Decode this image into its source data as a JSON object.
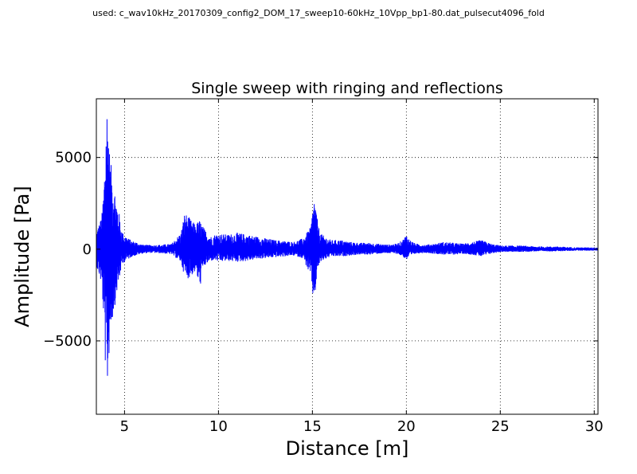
{
  "suptitle": "used: c_wav10kHz_20170309_config2_DOM_17_sweep10-60kHz_10Vpp_bp1-80.dat_pulsecut4096_fold",
  "chart_data": {
    "type": "line",
    "title": "Single sweep with ringing and reflections",
    "xlabel": "Distance [m]",
    "ylabel": "Amplitude [Pa]",
    "xlim": [
      3.5,
      30.2
    ],
    "ylim": [
      -9000,
      8200
    ],
    "grid": true,
    "color": "#0000ff",
    "xticks": [
      5,
      10,
      15,
      20,
      25,
      30
    ],
    "xtick_labels": [
      "5",
      "10",
      "15",
      "20",
      "25",
      "30"
    ],
    "yticks": [
      -5000,
      0,
      5000
    ],
    "ytick_labels": [
      "−5000",
      "0",
      "5000"
    ],
    "series": [
      {
        "x": [
          3.5,
          3.6,
          3.7,
          3.8,
          3.9,
          4.0,
          4.05,
          4.1,
          4.15,
          4.2,
          4.25,
          4.3,
          4.4,
          4.5,
          4.6,
          4.7,
          4.8,
          4.9,
          5.0,
          5.2,
          5.4,
          5.6,
          5.8,
          6.0,
          6.5,
          7.0,
          7.5,
          8.0,
          8.2,
          8.4,
          8.6,
          8.8,
          9.0,
          9.2,
          9.4,
          9.6,
          9.8,
          10.0,
          10.5,
          11.0,
          11.5,
          12.0,
          12.5,
          13.0,
          13.5,
          14.0,
          14.5,
          14.9,
          15.0,
          15.1,
          15.2,
          15.3,
          15.5,
          15.8,
          16.0,
          16.5,
          17.0,
          17.5,
          18.0,
          18.5,
          19.0,
          19.5,
          19.8,
          20.0,
          20.2,
          20.5,
          21.0,
          21.5,
          22.0,
          22.5,
          23.0,
          23.5,
          24.0,
          24.5,
          25.0,
          26.0,
          27.0,
          28.0,
          29.0,
          30.0,
          30.2
        ],
        "upper": [
          900,
          1300,
          1500,
          2000,
          3500,
          6500,
          8200,
          7800,
          7000,
          5500,
          4800,
          4500,
          3800,
          3200,
          2500,
          2100,
          1300,
          900,
          800,
          600,
          450,
          400,
          300,
          250,
          220,
          250,
          300,
          900,
          2000,
          1800,
          1500,
          1400,
          1600,
          1200,
          900,
          700,
          800,
          850,
          800,
          900,
          800,
          700,
          600,
          500,
          450,
          400,
          600,
          1200,
          2000,
          2900,
          2200,
          1300,
          800,
          600,
          500,
          500,
          400,
          350,
          350,
          300,
          250,
          300,
          500,
          800,
          500,
          300,
          250,
          300,
          400,
          350,
          300,
          400,
          500,
          300,
          200,
          200,
          150,
          150,
          100,
          100,
          100
        ],
        "lower": [
          -900,
          -1300,
          -1600,
          -2200,
          -4000,
          -7000,
          -8200,
          -7500,
          -6500,
          -5200,
          -4600,
          -4200,
          -3600,
          -3000,
          -2300,
          -1900,
          -1200,
          -800,
          -700,
          -550,
          -400,
          -350,
          -280,
          -230,
          -200,
          -230,
          -280,
          -700,
          -1500,
          -1600,
          -1400,
          -1200,
          -2200,
          -1000,
          -800,
          -650,
          -600,
          -700,
          -650,
          -700,
          -650,
          -550,
          -500,
          -450,
          -400,
          -350,
          -500,
          -1500,
          -2500,
          -2800,
          -2000,
          -1000,
          -650,
          -500,
          -400,
          -400,
          -350,
          -300,
          -300,
          -250,
          -220,
          -250,
          -400,
          -600,
          -400,
          -250,
          -200,
          -250,
          -300,
          -300,
          -250,
          -300,
          -400,
          -250,
          -150,
          -150,
          -120,
          -120,
          -80,
          -80,
          -80
        ]
      }
    ]
  }
}
